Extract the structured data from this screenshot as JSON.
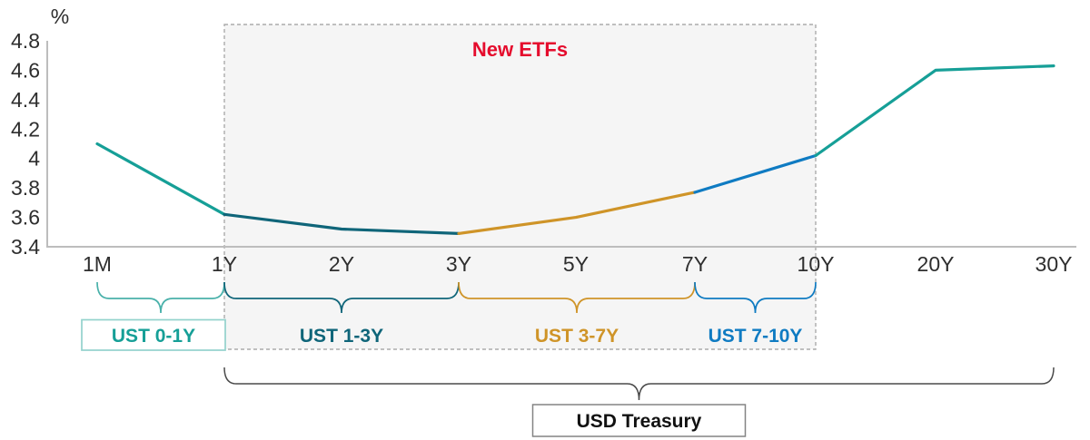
{
  "colors": {
    "teal": "#169f97",
    "teal_light": "#49b1aa",
    "teal_box_border": "#93d2cc",
    "dark_teal": "#0f6579",
    "orange": "#cf9428",
    "blue": "#0f7bc2",
    "red": "#e50c2d",
    "axis": "#bdbdbd",
    "tick_text": "#2e2e2e",
    "region_fill": "#f5f5f5",
    "region_border": "#ababab",
    "bottom_brace": "#4a4a4a",
    "bottom_box_border": "#848484",
    "bottom_text": "#111111"
  },
  "chart_data": {
    "type": "line",
    "title": "New ETFs",
    "ylabel": "%",
    "categories": [
      "1M",
      "1Y",
      "2Y",
      "3Y",
      "5Y",
      "7Y",
      "10Y",
      "20Y",
      "30Y"
    ],
    "values": [
      4.1,
      3.62,
      3.52,
      3.49,
      3.6,
      3.77,
      4.02,
      4.6,
      4.63
    ],
    "yticks": [
      4.8,
      4.6,
      4.4,
      4.2,
      4,
      3.8,
      3.6,
      3.4
    ],
    "ylim": [
      3.4,
      4.8
    ],
    "grid": false,
    "legend": "none",
    "segments": [
      {
        "from": "1M",
        "to": "1Y",
        "color": "teal"
      },
      {
        "from": "1Y",
        "to": "3Y",
        "color": "dark_teal"
      },
      {
        "from": "3Y",
        "to": "7Y",
        "color": "orange"
      },
      {
        "from": "7Y",
        "to": "10Y",
        "color": "blue"
      },
      {
        "from": "10Y",
        "to": "30Y",
        "color": "teal"
      }
    ],
    "highlight_region": {
      "from": "1Y",
      "to": "10Y",
      "label": "New ETFs",
      "label_color": "red"
    },
    "maturity_buckets": [
      {
        "label": "UST 0-1Y",
        "from": "1M",
        "to": "1Y",
        "text_color": "teal",
        "brace_color": "teal_light",
        "boxed": true
      },
      {
        "label": "UST 1-3Y",
        "from": "1Y",
        "to": "3Y",
        "text_color": "dark_teal",
        "brace_color": "dark_teal",
        "boxed": false
      },
      {
        "label": "UST 3-7Y",
        "from": "3Y",
        "to": "7Y",
        "text_color": "orange",
        "brace_color": "orange",
        "boxed": false
      },
      {
        "label": "UST 7-10Y",
        "from": "7Y",
        "to": "10Y",
        "text_color": "blue",
        "brace_color": "blue",
        "boxed": false
      }
    ],
    "bottom_bucket": {
      "label": "USD Treasury",
      "from": "1Y",
      "to": "30Y"
    }
  }
}
